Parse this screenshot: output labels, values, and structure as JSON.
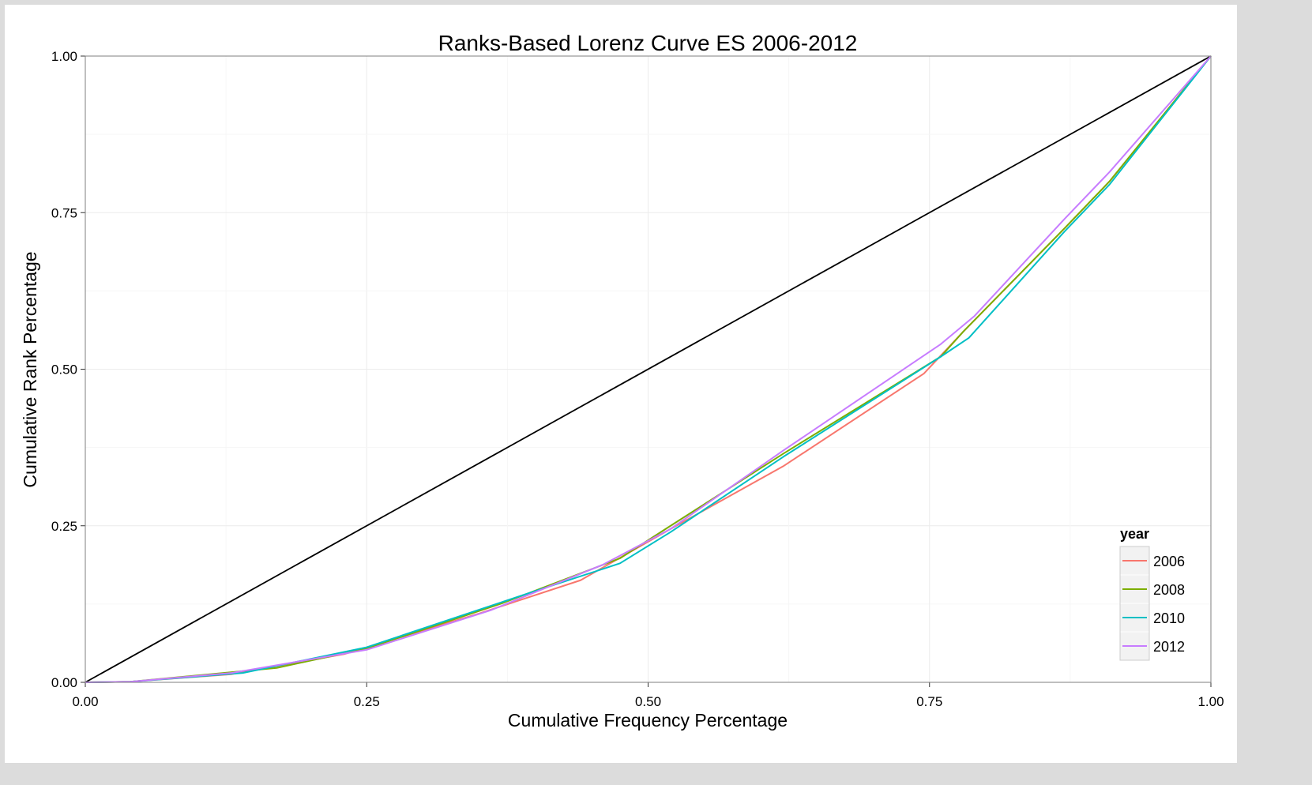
{
  "chart_data": {
    "type": "line",
    "title": "Ranks-Based Lorenz Curve ES 2006-2012",
    "xlabel": "Cumulative Frequency Percentage",
    "ylabel": "Cumulative Rank Percentage",
    "xlim": [
      0,
      1
    ],
    "ylim": [
      0,
      1
    ],
    "xticks": [
      "0.00",
      "0.25",
      "0.50",
      "0.75",
      "1.00"
    ],
    "yticks": [
      "0.00",
      "0.25",
      "0.50",
      "0.75",
      "1.00"
    ],
    "grid": true,
    "legend": {
      "title": "year",
      "position": "bottom-right"
    },
    "equality_line": {
      "x": [
        0,
        1
      ],
      "y": [
        0,
        1
      ],
      "color": "#000000"
    },
    "series": [
      {
        "name": "2006",
        "color": "#F8766D",
        "x": [
          0,
          0.04,
          0.13,
          0.23,
          0.35,
          0.44,
          0.52,
          0.62,
          0.745,
          0.78,
          0.87,
          0.91,
          1.0
        ],
        "y": [
          0,
          0.001,
          0.013,
          0.045,
          0.11,
          0.163,
          0.245,
          0.345,
          0.493,
          0.56,
          0.725,
          0.8,
          1.0
        ]
      },
      {
        "name": "2008",
        "color": "#7CAE00",
        "x": [
          0,
          0.04,
          0.17,
          0.25,
          0.37,
          0.475,
          0.52,
          0.62,
          0.76,
          0.78,
          0.87,
          0.91,
          1.0
        ],
        "y": [
          0,
          0.001,
          0.023,
          0.054,
          0.126,
          0.198,
          0.25,
          0.365,
          0.52,
          0.56,
          0.725,
          0.8,
          1.0
        ]
      },
      {
        "name": "2010",
        "color": "#00BFC4",
        "x": [
          0,
          0.04,
          0.14,
          0.25,
          0.39,
          0.475,
          0.52,
          0.62,
          0.76,
          0.785,
          0.87,
          0.91,
          1.0
        ],
        "y": [
          0,
          0.001,
          0.015,
          0.056,
          0.14,
          0.19,
          0.24,
          0.36,
          0.52,
          0.55,
          0.72,
          0.795,
          1.0
        ]
      },
      {
        "name": "2012",
        "color": "#C77CFF",
        "x": [
          0,
          0.04,
          0.13,
          0.25,
          0.36,
          0.46,
          0.52,
          0.62,
          0.76,
          0.79,
          0.87,
          0.91,
          1.0
        ],
        "y": [
          0,
          0.001,
          0.015,
          0.052,
          0.115,
          0.188,
          0.245,
          0.37,
          0.54,
          0.585,
          0.74,
          0.815,
          1.0
        ]
      }
    ]
  }
}
